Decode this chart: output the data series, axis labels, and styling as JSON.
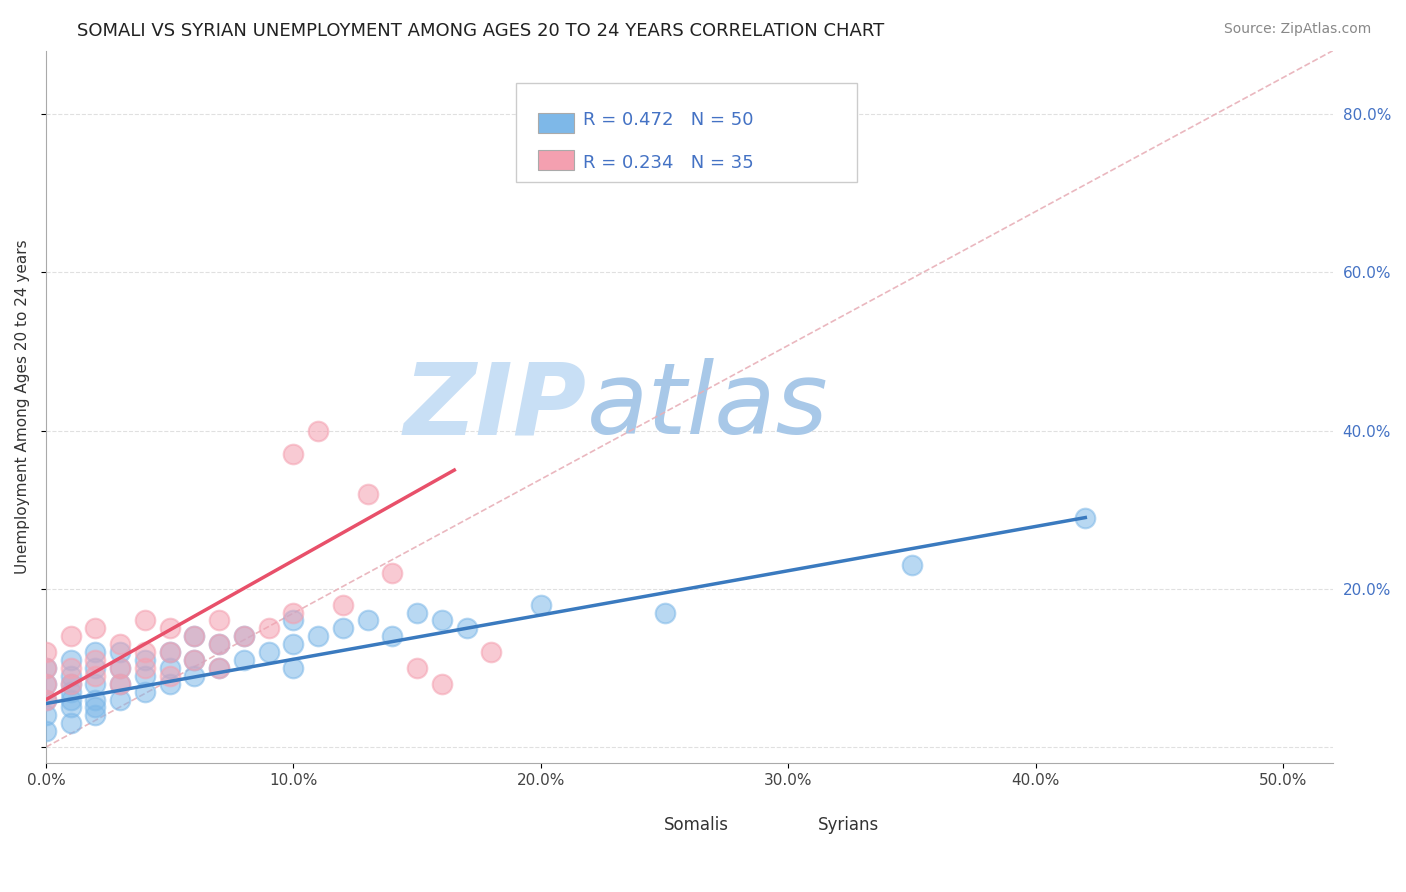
{
  "title": "SOMALI VS SYRIAN UNEMPLOYMENT AMONG AGES 20 TO 24 YEARS CORRELATION CHART",
  "source": "Source: ZipAtlas.com",
  "xlim": [
    0.0,
    0.52
  ],
  "ylim": [
    -0.02,
    0.88
  ],
  "somali_R": 0.472,
  "somali_N": 50,
  "syrian_R": 0.234,
  "syrian_N": 35,
  "somali_color": "#7eb8e8",
  "syrian_color": "#f4a0b0",
  "somali_line_color": "#3a7abf",
  "syrian_line_color": "#e8506a",
  "ref_line_color": "#e8b0b8",
  "background_color": "#ffffff",
  "grid_color": "#dddddd",
  "tick_color": "#4472c4",
  "watermark_zip_color": "#dbeaf8",
  "watermark_atlas_color": "#c5d8f0",
  "somali_x": [
    0.0,
    0.0,
    0.0,
    0.0,
    0.0,
    0.01,
    0.01,
    0.01,
    0.01,
    0.01,
    0.01,
    0.01,
    0.02,
    0.02,
    0.02,
    0.02,
    0.02,
    0.02,
    0.03,
    0.03,
    0.03,
    0.03,
    0.04,
    0.04,
    0.04,
    0.05,
    0.05,
    0.05,
    0.06,
    0.06,
    0.06,
    0.07,
    0.07,
    0.08,
    0.08,
    0.09,
    0.1,
    0.1,
    0.1,
    0.11,
    0.12,
    0.13,
    0.14,
    0.15,
    0.16,
    0.17,
    0.2,
    0.25,
    0.35,
    0.42
  ],
  "somali_y": [
    0.02,
    0.04,
    0.06,
    0.08,
    0.1,
    0.03,
    0.05,
    0.07,
    0.09,
    0.11,
    0.06,
    0.08,
    0.04,
    0.06,
    0.08,
    0.1,
    0.12,
    0.05,
    0.06,
    0.08,
    0.1,
    0.12,
    0.07,
    0.09,
    0.11,
    0.08,
    0.1,
    0.12,
    0.09,
    0.11,
    0.14,
    0.1,
    0.13,
    0.11,
    0.14,
    0.12,
    0.1,
    0.13,
    0.16,
    0.14,
    0.15,
    0.16,
    0.14,
    0.17,
    0.16,
    0.15,
    0.18,
    0.17,
    0.23,
    0.29
  ],
  "syrian_x": [
    0.0,
    0.0,
    0.0,
    0.0,
    0.01,
    0.01,
    0.01,
    0.02,
    0.02,
    0.02,
    0.03,
    0.03,
    0.03,
    0.04,
    0.04,
    0.04,
    0.05,
    0.05,
    0.05,
    0.06,
    0.06,
    0.07,
    0.07,
    0.07,
    0.08,
    0.09,
    0.1,
    0.1,
    0.11,
    0.12,
    0.13,
    0.14,
    0.15,
    0.16,
    0.18
  ],
  "syrian_y": [
    0.06,
    0.08,
    0.1,
    0.12,
    0.08,
    0.1,
    0.14,
    0.09,
    0.11,
    0.15,
    0.08,
    0.1,
    0.13,
    0.1,
    0.12,
    0.16,
    0.09,
    0.12,
    0.15,
    0.11,
    0.14,
    0.1,
    0.13,
    0.16,
    0.14,
    0.15,
    0.37,
    0.17,
    0.4,
    0.18,
    0.32,
    0.22,
    0.1,
    0.08,
    0.12
  ],
  "syrian_trend_start_x": 0.0,
  "syrian_trend_start_y": 0.06,
  "syrian_trend_end_x": 0.165,
  "syrian_trend_end_y": 0.35,
  "somali_trend_start_x": 0.0,
  "somali_trend_start_y": 0.055,
  "somali_trend_end_x": 0.42,
  "somali_trend_end_y": 0.29
}
